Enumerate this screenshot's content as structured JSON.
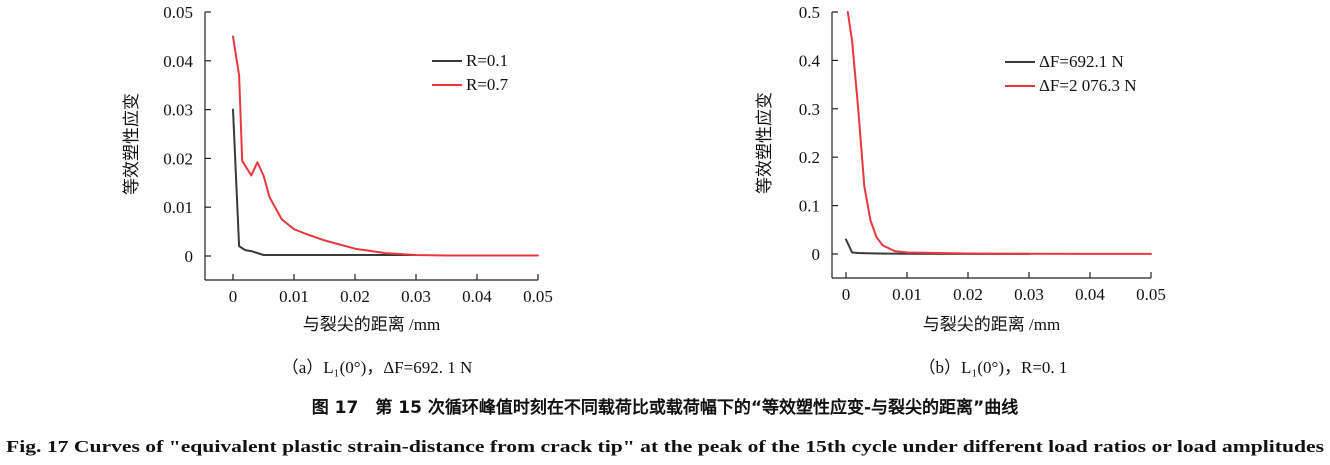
{
  "chart_data": [
    {
      "type": "line",
      "ylabel": "等效塑性应变",
      "xlabel": "与裂尖的距离 /mm",
      "xlim": [
        0,
        0.05
      ],
      "ylim": [
        0,
        0.05
      ],
      "xticks": [
        "0",
        "0.01",
        "0.02",
        "0.03",
        "0.04",
        "0.05"
      ],
      "yticks": [
        "0",
        "0.01",
        "0.02",
        "0.03",
        "0.04",
        "0.05"
      ],
      "legend_position": "top-right",
      "caption": "（a）L₁(0°)，ΔF=692. 1 N",
      "series": [
        {
          "name": "R=0.1",
          "color": "#3a3a3a",
          "x": [
            0,
            0.001,
            0.002,
            0.003,
            0.005,
            0.01,
            0.02,
            0.03
          ],
          "y": [
            0.03,
            0.002,
            0.0012,
            0.001,
            0.0002,
            0.0002,
            0.0002,
            0.0002
          ]
        },
        {
          "name": "R=0.7",
          "color": "#e8383d",
          "x": [
            0,
            0.001,
            0.0015,
            0.003,
            0.004,
            0.005,
            0.006,
            0.008,
            0.01,
            0.012,
            0.015,
            0.02,
            0.025,
            0.03,
            0.035,
            0.04,
            0.045,
            0.05
          ],
          "y": [
            0.045,
            0.037,
            0.0195,
            0.0165,
            0.0192,
            0.0165,
            0.012,
            0.0075,
            0.0055,
            0.0045,
            0.0032,
            0.0015,
            0.0006,
            0.0002,
            0.0001,
            0.0001,
            0.0001,
            0.0001
          ]
        }
      ]
    },
    {
      "type": "line",
      "ylabel": "等效塑性应变",
      "xlabel": "与裂尖的距离 /mm",
      "xlim": [
        0,
        0.05
      ],
      "ylim": [
        0,
        0.5
      ],
      "xticks": [
        "0",
        "0.01",
        "0.02",
        "0.03",
        "0.04",
        "0.05"
      ],
      "yticks": [
        "0",
        "0.1",
        "0.2",
        "0.3",
        "0.4",
        "0.5"
      ],
      "legend_position": "top-right",
      "caption": "（b）L₁(0°)，R=0. 1",
      "series": [
        {
          "name": "ΔF=692.1 N",
          "color": "#3a3a3a",
          "x": [
            0,
            0.001,
            0.002,
            0.005,
            0.01,
            0.02,
            0.03
          ],
          "y": [
            0.03,
            0.003,
            0.002,
            0.001,
            0.0005,
            0.0002,
            0.0002
          ]
        },
        {
          "name": "ΔF=2 076.3 N",
          "color": "#e8383d",
          "x": [
            0.0003,
            0.001,
            0.002,
            0.003,
            0.004,
            0.005,
            0.006,
            0.008,
            0.01,
            0.015,
            0.02,
            0.03,
            0.04,
            0.05
          ],
          "y": [
            0.5,
            0.44,
            0.3,
            0.14,
            0.07,
            0.035,
            0.018,
            0.006,
            0.003,
            0.002,
            0.001,
            0.0005,
            0.0003,
            0.0002
          ]
        }
      ]
    }
  ],
  "figure_caption_cn": "图 17　第 15 次循环峰值时刻在不同载荷比或载荷幅下的“等效塑性应变-与裂尖的距离”曲线",
  "figure_caption_en": "Fig. 17    Curves of \"equivalent plastic strain-distance from crack tip\" at the peak of the 15th cycle under different load ratios or load amplitudes"
}
